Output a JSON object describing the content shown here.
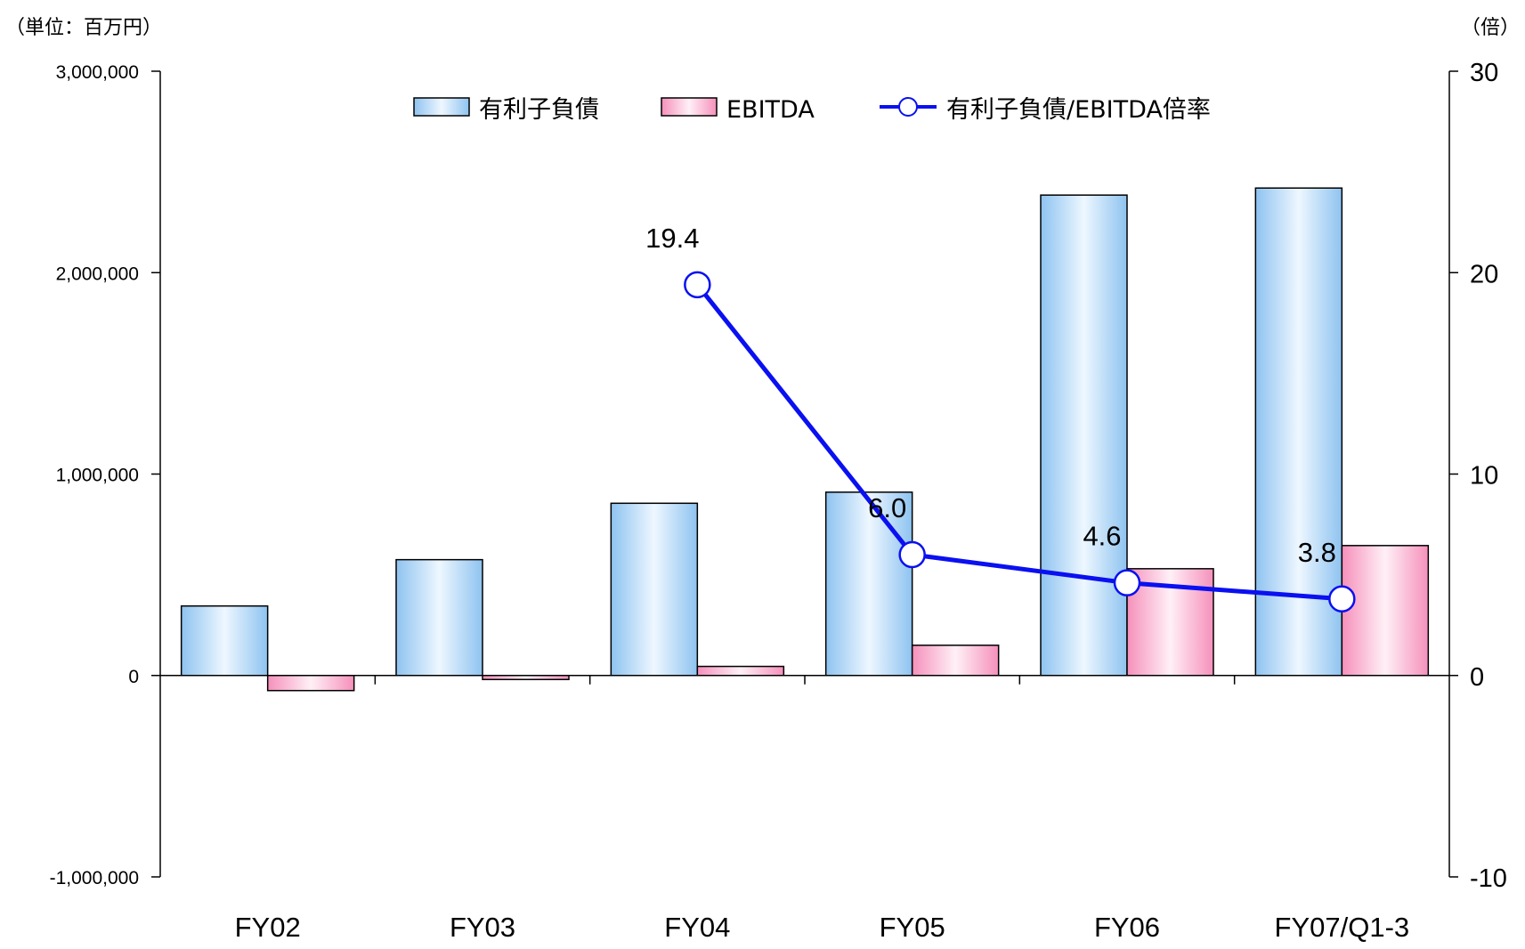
{
  "chart_data": {
    "type": "bar",
    "left_unit_label": "（単位：百万円）",
    "right_unit_label": "（倍）",
    "categories": [
      "FY02",
      "FY03",
      "FY04",
      "FY05",
      "FY06",
      "FY07/Q1-3"
    ],
    "y_left": {
      "lim": [
        -1000000,
        3000000
      ],
      "ticks": [
        -1000000,
        0,
        1000000,
        2000000,
        3000000
      ],
      "tick_labels": [
        "-1,000,000",
        "0",
        "1,000,000",
        "2,000,000",
        "3,000,000"
      ]
    },
    "y_right": {
      "lim": [
        -10,
        30
      ],
      "ticks": [
        -10,
        0,
        10,
        20,
        30
      ],
      "tick_labels": [
        "-10",
        "0",
        "10",
        "20",
        "30"
      ]
    },
    "series": [
      {
        "name": "有利子負債",
        "kind": "bar",
        "axis": "left",
        "color": "#bcdcf8",
        "values": [
          345000,
          575000,
          855000,
          910000,
          2385000,
          2420000
        ]
      },
      {
        "name": "EBITDA",
        "kind": "bar",
        "axis": "left",
        "color": "#f9c0d8",
        "values": [
          -75000,
          -20000,
          45000,
          150000,
          530000,
          645000
        ]
      },
      {
        "name": "有利子負債/EBITDA倍率",
        "kind": "line",
        "axis": "right",
        "color": "#0a10f0",
        "values": [
          null,
          null,
          19.4,
          6.0,
          4.6,
          3.8
        ],
        "labels": [
          null,
          null,
          "19.4",
          "6.0",
          "4.6",
          "3.8"
        ]
      }
    ],
    "legend_position": "top-center",
    "grid": false
  }
}
